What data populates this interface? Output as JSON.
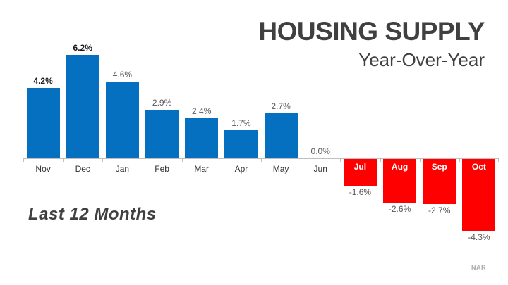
{
  "title": "HOUSING SUPPLY",
  "subtitle": "Year-Over-Year",
  "caption": "Last 12 Months",
  "source": "NAR",
  "colors": {
    "positive_bar": "#0670C0",
    "negative_bar": "#FF0000",
    "title_text": "#404040",
    "subtitle_text": "#404040",
    "value_label_text": "#595959",
    "value_label_emphasis_text": "#1A1A1A",
    "month_label_text": "#333333",
    "month_label_on_bar_text": "#FFFFFF",
    "axis_line": "#BFBFBF",
    "caption_text": "#404040",
    "source_text": "#ABABAB"
  },
  "chart_data": {
    "type": "bar",
    "title": "HOUSING SUPPLY",
    "subtitle": "Year-Over-Year",
    "xlabel": "",
    "ylabel": "",
    "categories": [
      "Nov",
      "Dec",
      "Jan",
      "Feb",
      "Mar",
      "Apr",
      "May",
      "Jun",
      "Jul",
      "Aug",
      "Sep",
      "Oct"
    ],
    "values": [
      4.2,
      6.2,
      4.6,
      2.9,
      2.4,
      1.7,
      2.7,
      0.0,
      -1.6,
      -2.6,
      -2.7,
      -4.3
    ],
    "value_labels": [
      "4.2%",
      "6.2%",
      "4.6%",
      "2.9%",
      "2.4%",
      "1.7%",
      "2.7%",
      "0.0%",
      "-1.6%",
      "-2.6%",
      "-2.7%",
      "-4.3%"
    ],
    "label_bold": [
      true,
      true,
      false,
      false,
      false,
      false,
      false,
      false,
      false,
      false,
      false,
      false
    ],
    "units": "percent",
    "ylim": [
      -4.3,
      6.2
    ],
    "baseline": 0,
    "grid": false,
    "legend": "none",
    "annotation": "Last 12 Months",
    "source": "NAR"
  }
}
